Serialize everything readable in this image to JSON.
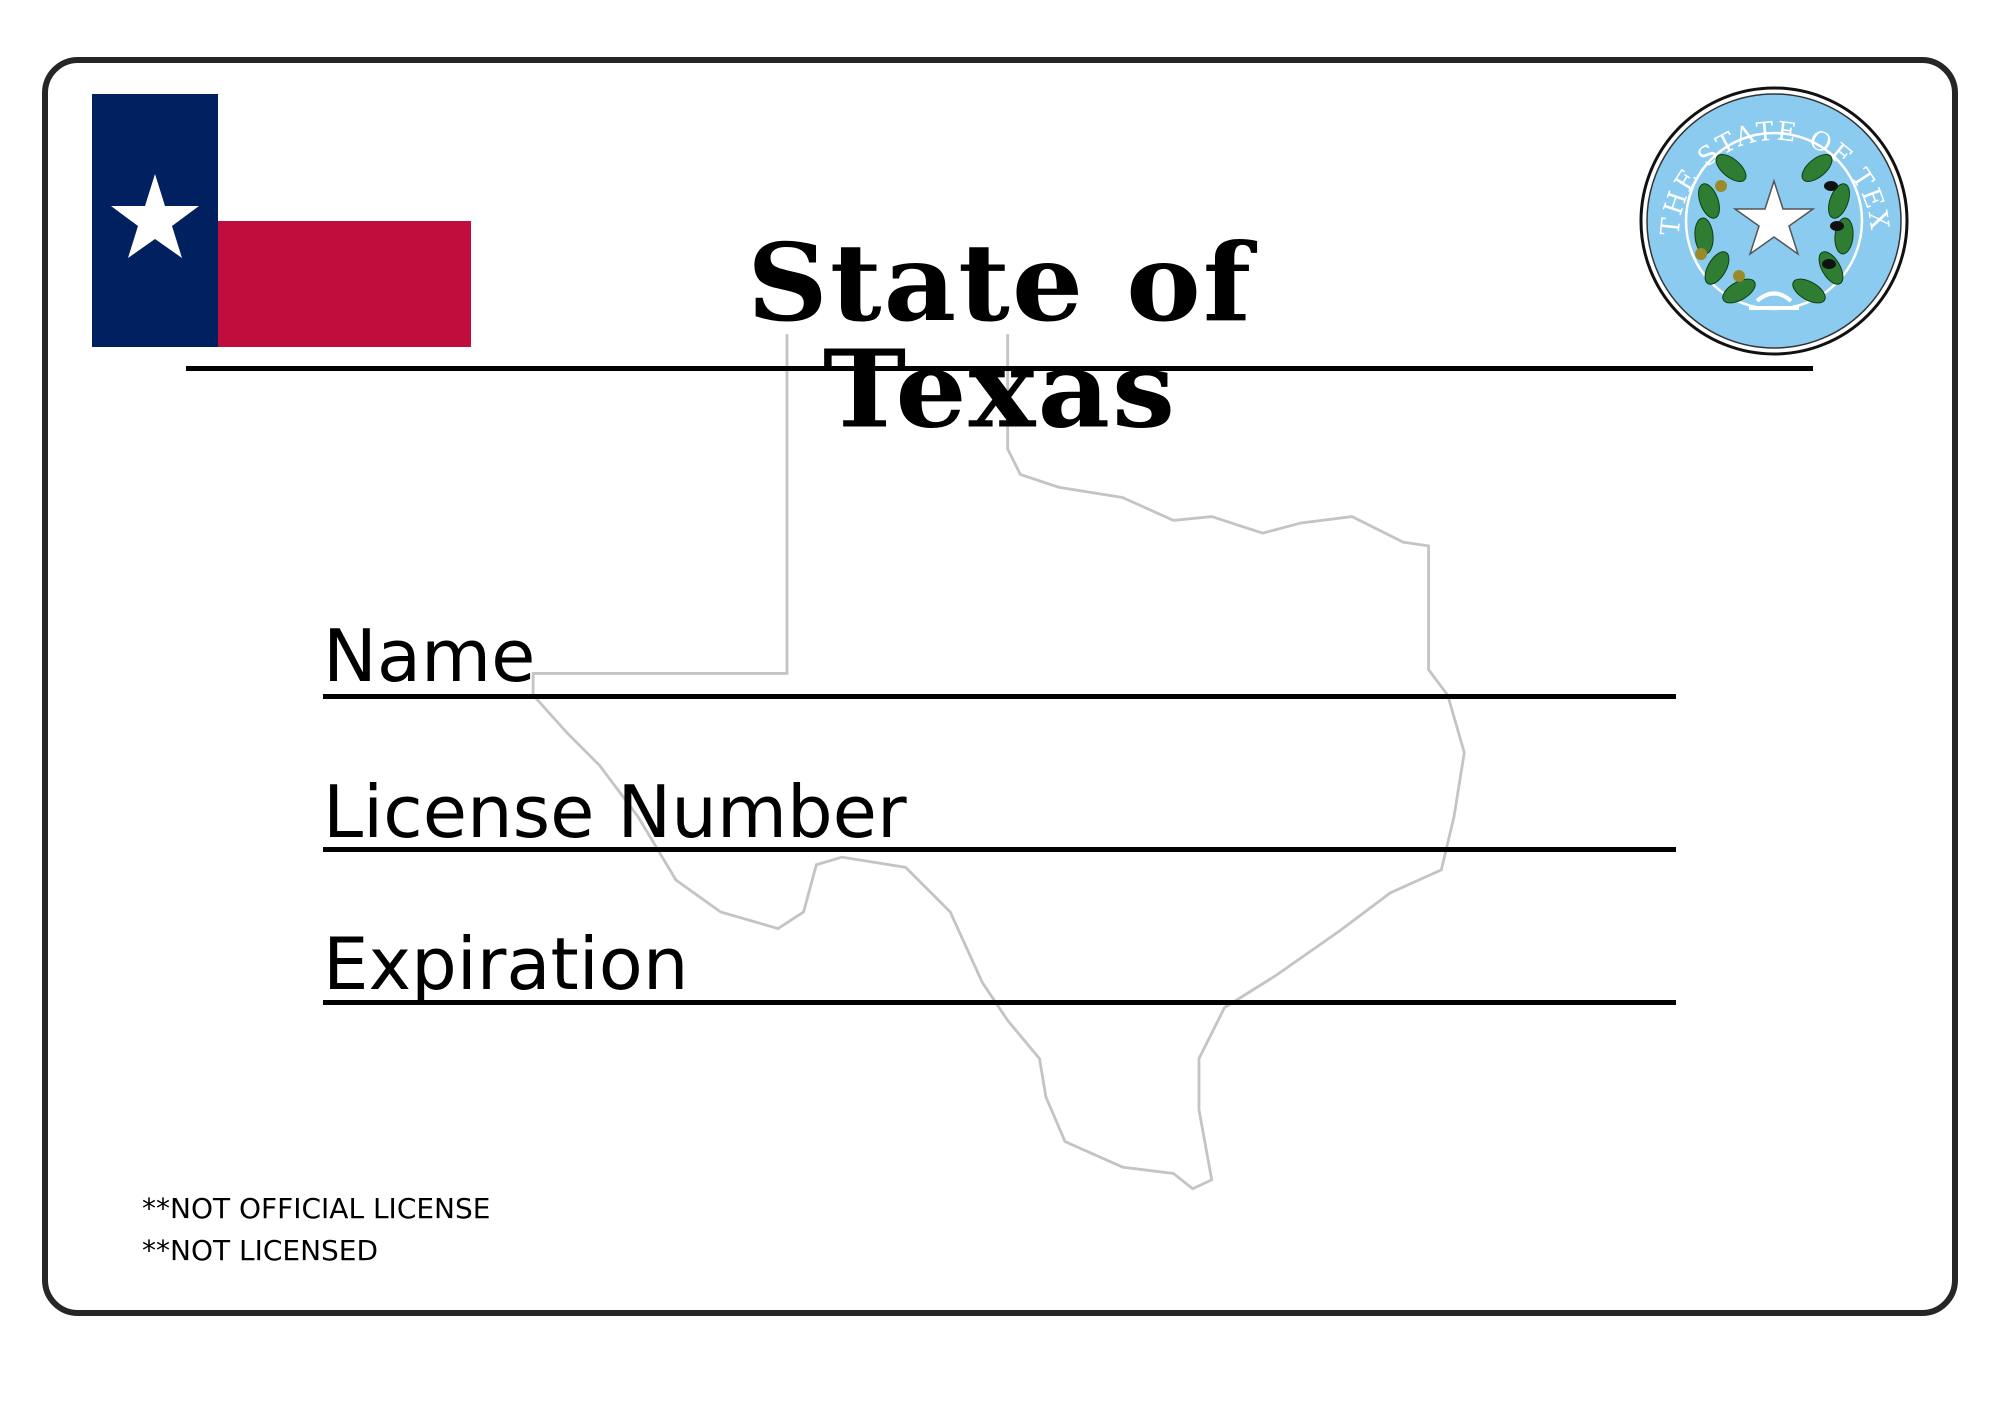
{
  "card": {
    "title": "State of Texas",
    "seal_text": "THE STATE OF TEXAS",
    "fields": [
      {
        "label": "Name"
      },
      {
        "label": "License Number"
      },
      {
        "label": "Expiration"
      }
    ],
    "disclaimers": [
      "**NOT OFFICIAL LICENSE",
      "**NOT LICENSED"
    ]
  },
  "colors": {
    "flag_blue": "#002060",
    "flag_red": "#BF0D3E",
    "seal_blue": "#8ACBEF",
    "wreath_green": "#2E7D32",
    "border": "#262626"
  },
  "icons": [
    "texas-flag-icon",
    "texas-seal-icon",
    "texas-outline-map"
  ]
}
